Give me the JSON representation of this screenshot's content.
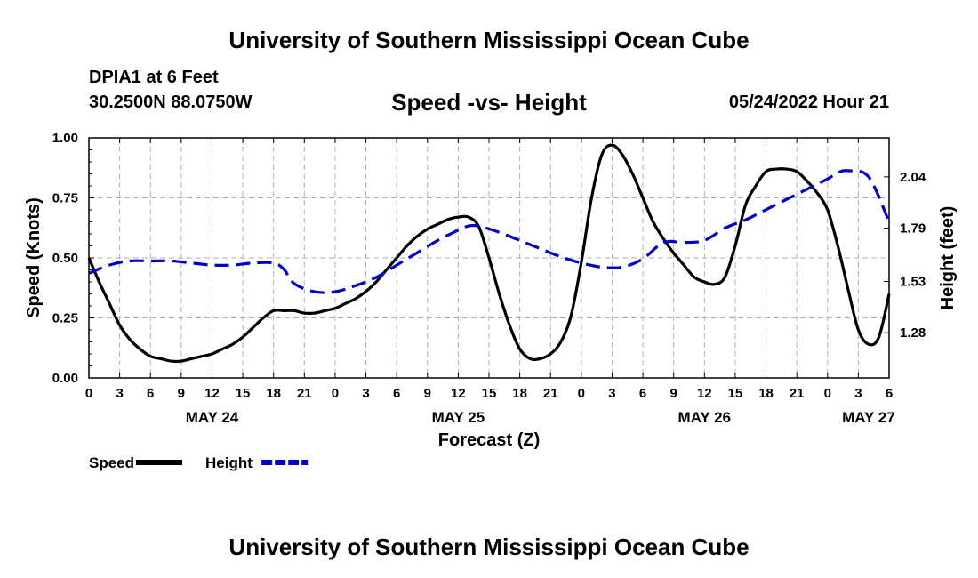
{
  "header": {
    "title": "University of Southern Mississippi Ocean Cube",
    "station": "DPIA1 at 6 Feet",
    "coordinates": "30.2500N  88.0750W",
    "subtitle": "Speed -vs- Height",
    "datetime": "05/24/2022 Hour 21"
  },
  "footer": {
    "title": "University of Southern Mississippi Ocean Cube"
  },
  "chart_data": {
    "type": "line",
    "title": "Speed -vs- Height",
    "xlabel": "Forecast (Z)",
    "ylabel_left": "Speed (Knots)",
    "ylabel_right": "Height (feet)",
    "xlim": [
      0,
      78
    ],
    "ylim_left": [
      0,
      1
    ],
    "ylim_right": [
      1.06,
      2.23
    ],
    "grid": true,
    "x_ticks": [
      0,
      3,
      6,
      9,
      12,
      15,
      18,
      21,
      24,
      27,
      30,
      33,
      36,
      39,
      42,
      45,
      48,
      51,
      54,
      57,
      60,
      63,
      66,
      69,
      72,
      75,
      78
    ],
    "x_tick_labels": [
      "0",
      "3",
      "6",
      "9",
      "12",
      "15",
      "18",
      "21",
      "0",
      "3",
      "6",
      "9",
      "12",
      "15",
      "18",
      "21",
      "0",
      "3",
      "6",
      "9",
      "12",
      "15",
      "18",
      "21",
      "0",
      "3",
      "6"
    ],
    "date_labels": [
      {
        "x": 12,
        "label": "MAY 24"
      },
      {
        "x": 36,
        "label": "MAY 25"
      },
      {
        "x": 60,
        "label": "MAY 26"
      },
      {
        "x": 76,
        "label": "MAY 27"
      }
    ],
    "y_left_ticks": [
      0,
      0.25,
      0.5,
      0.75,
      1.0
    ],
    "y_left_tick_labels": [
      "0.00",
      "0.25",
      "0.50",
      "0.75",
      "1.00"
    ],
    "y_right_ticks": [
      1.28,
      1.53,
      1.79,
      2.04
    ],
    "y_right_tick_labels": [
      "1.28",
      "1.53",
      "1.79",
      "2.04"
    ],
    "legend": [
      {
        "name": "Speed",
        "color": "#000000",
        "dash": "solid"
      },
      {
        "name": "Height",
        "color": "#0000cc",
        "dash": "dashed"
      }
    ],
    "series": [
      {
        "name": "Speed",
        "axis": "left",
        "color": "#000000",
        "x": [
          0,
          1,
          2,
          3,
          4,
          5,
          6,
          7,
          8,
          9,
          10,
          11,
          12,
          13,
          14,
          15,
          16,
          17,
          18,
          19,
          20,
          21,
          22,
          23,
          24,
          25,
          26,
          27,
          28,
          29,
          30,
          31,
          32,
          33,
          34,
          35,
          36,
          37,
          38,
          39,
          40,
          41,
          42,
          43,
          44,
          45,
          46,
          47,
          48,
          49,
          50,
          51,
          52,
          53,
          54,
          55,
          56,
          57,
          58,
          59,
          60,
          61,
          62,
          63,
          64,
          65,
          66,
          67,
          68,
          69,
          70,
          71,
          72,
          73,
          74,
          75,
          76,
          77,
          78
        ],
        "values": [
          0.5,
          0.4,
          0.31,
          0.22,
          0.16,
          0.12,
          0.09,
          0.08,
          0.07,
          0.07,
          0.08,
          0.09,
          0.1,
          0.12,
          0.14,
          0.17,
          0.21,
          0.25,
          0.28,
          0.28,
          0.28,
          0.27,
          0.27,
          0.28,
          0.29,
          0.31,
          0.33,
          0.36,
          0.4,
          0.45,
          0.5,
          0.55,
          0.59,
          0.62,
          0.64,
          0.66,
          0.67,
          0.67,
          0.63,
          0.5,
          0.35,
          0.22,
          0.12,
          0.08,
          0.08,
          0.1,
          0.15,
          0.26,
          0.48,
          0.75,
          0.93,
          0.97,
          0.93,
          0.85,
          0.75,
          0.65,
          0.58,
          0.52,
          0.47,
          0.42,
          0.4,
          0.39,
          0.42,
          0.55,
          0.72,
          0.8,
          0.86,
          0.87,
          0.87,
          0.86,
          0.82,
          0.77,
          0.7,
          0.55,
          0.37,
          0.2,
          0.14,
          0.17,
          0.35
        ]
      },
      {
        "name": "Height",
        "axis": "right",
        "color": "#0000cc",
        "x": [
          0,
          2,
          4,
          6,
          8,
          10,
          12,
          14,
          16,
          18,
          19,
          20,
          22,
          24,
          26,
          28,
          30,
          32,
          34,
          36,
          37,
          38,
          40,
          42,
          44,
          46,
          48,
          50,
          52,
          54,
          56,
          58,
          60,
          62,
          64,
          66,
          68,
          70,
          72,
          73,
          74,
          76,
          78
        ],
        "values": [
          1.57,
          1.61,
          1.63,
          1.63,
          1.63,
          1.62,
          1.61,
          1.61,
          1.62,
          1.62,
          1.59,
          1.52,
          1.48,
          1.48,
          1.51,
          1.55,
          1.61,
          1.67,
          1.73,
          1.78,
          1.8,
          1.8,
          1.77,
          1.73,
          1.69,
          1.65,
          1.62,
          1.6,
          1.6,
          1.64,
          1.72,
          1.72,
          1.73,
          1.79,
          1.83,
          1.88,
          1.93,
          1.98,
          2.03,
          2.06,
          2.07,
          2.04,
          1.82
        ]
      }
    ]
  }
}
